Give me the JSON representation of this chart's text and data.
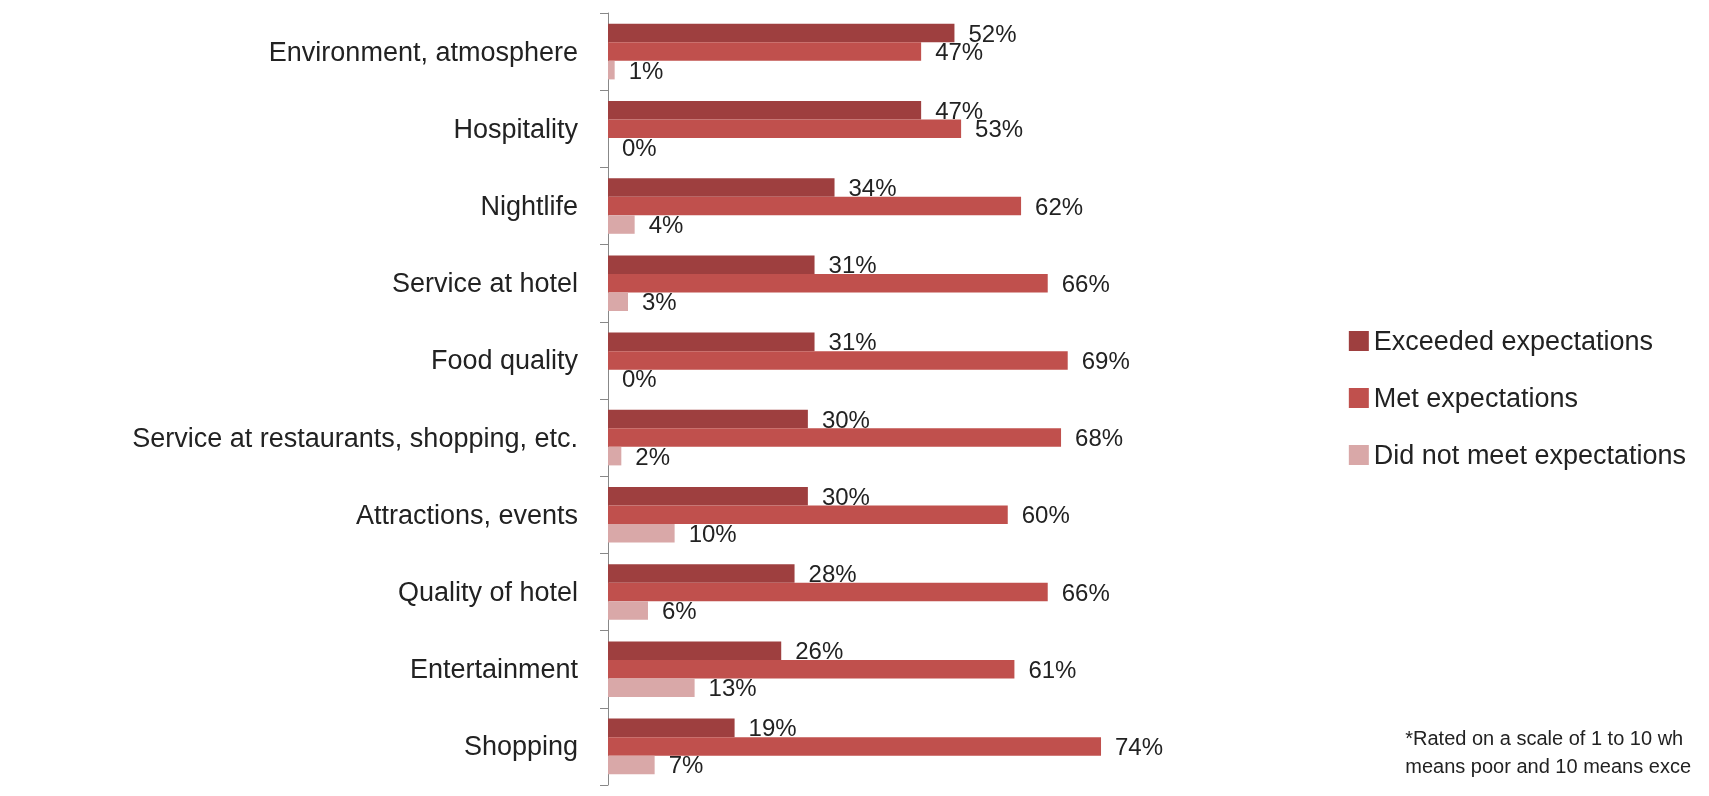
{
  "chart_data": {
    "type": "bar",
    "orientation": "horizontal",
    "categories": [
      "Environment, atmosphere",
      "Hospitality",
      "Nightlife",
      "Service at hotel",
      "Food quality",
      "Service at restaurants, shopping, etc.",
      "Attractions, events",
      "Quality of hotel",
      "Entertainment",
      "Shopping"
    ],
    "series": [
      {
        "name": "Exceeded expectations",
        "color": "#9e3f3f",
        "values": [
          52,
          47,
          34,
          31,
          31,
          30,
          30,
          28,
          26,
          19
        ],
        "value_labels": [
          "52%",
          "47%",
          "34%",
          "31%",
          "31%",
          "30%",
          "30%",
          "28%",
          "26%",
          "19%"
        ]
      },
      {
        "name": "Met expectations",
        "color": "#c0504d",
        "values": [
          47,
          53,
          62,
          66,
          69,
          68,
          60,
          66,
          61,
          74
        ],
        "value_labels": [
          "47%",
          "53%",
          "62%",
          "66%",
          "69%",
          "68%",
          "60%",
          "66%",
          "61%",
          "74%"
        ]
      },
      {
        "name": "Did not meet expectations",
        "color": "#d9a8a8",
        "values": [
          1,
          0,
          4,
          3,
          0,
          2,
          10,
          6,
          13,
          7
        ],
        "value_labels": [
          "1%",
          "0%",
          "4%",
          "3%",
          "0%",
          "2%",
          "10%",
          "6%",
          "13%",
          "7%"
        ]
      }
    ],
    "legend": "right",
    "grid": false,
    "tick_labels": "y",
    "annotations": [
      "*Rated on a scale of 1 to 10 wh\nmeans poor and 10 means exce"
    ]
  }
}
